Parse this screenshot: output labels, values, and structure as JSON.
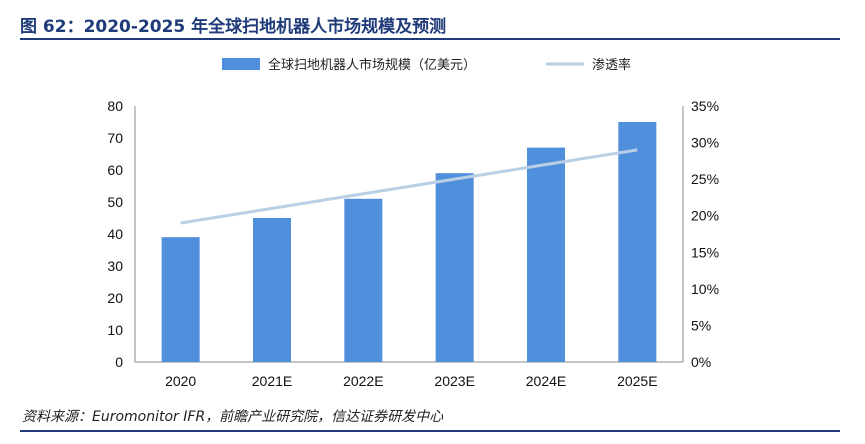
{
  "header": {
    "title": "图 62：2020-2025 年全球扫地机器人市场规模及预测"
  },
  "footer": {
    "source": "资料来源：Euromonitor IFR，前瞻产业研究院，信达证券研发中心"
  },
  "chart_data": {
    "type": "bar",
    "categories": [
      "2020",
      "2021E",
      "2022E",
      "2023E",
      "2024E",
      "2025E"
    ],
    "series": [
      {
        "name": "全球扫地机器人市场规模（亿美元）",
        "type": "bar",
        "axis": "left",
        "values": [
          39,
          45,
          51,
          59,
          67,
          75
        ]
      },
      {
        "name": "渗透率",
        "type": "line",
        "axis": "right",
        "values": [
          19,
          21,
          23,
          25,
          27,
          29
        ]
      }
    ],
    "y_left": {
      "min": 0,
      "max": 80,
      "ticks": [
        "0",
        "10",
        "20",
        "30",
        "40",
        "50",
        "60",
        "70",
        "80"
      ]
    },
    "y_right": {
      "min": 0,
      "max": 35,
      "ticks": [
        "0%",
        "5%",
        "10%",
        "15%",
        "20%",
        "25%",
        "30%",
        "35%"
      ]
    },
    "legend_position": "top-center",
    "grid": false,
    "colors": {
      "bar": "#4f8fdc",
      "line": "#b8cfe6",
      "axis": "#888888",
      "title": "#1f3b7a"
    }
  }
}
